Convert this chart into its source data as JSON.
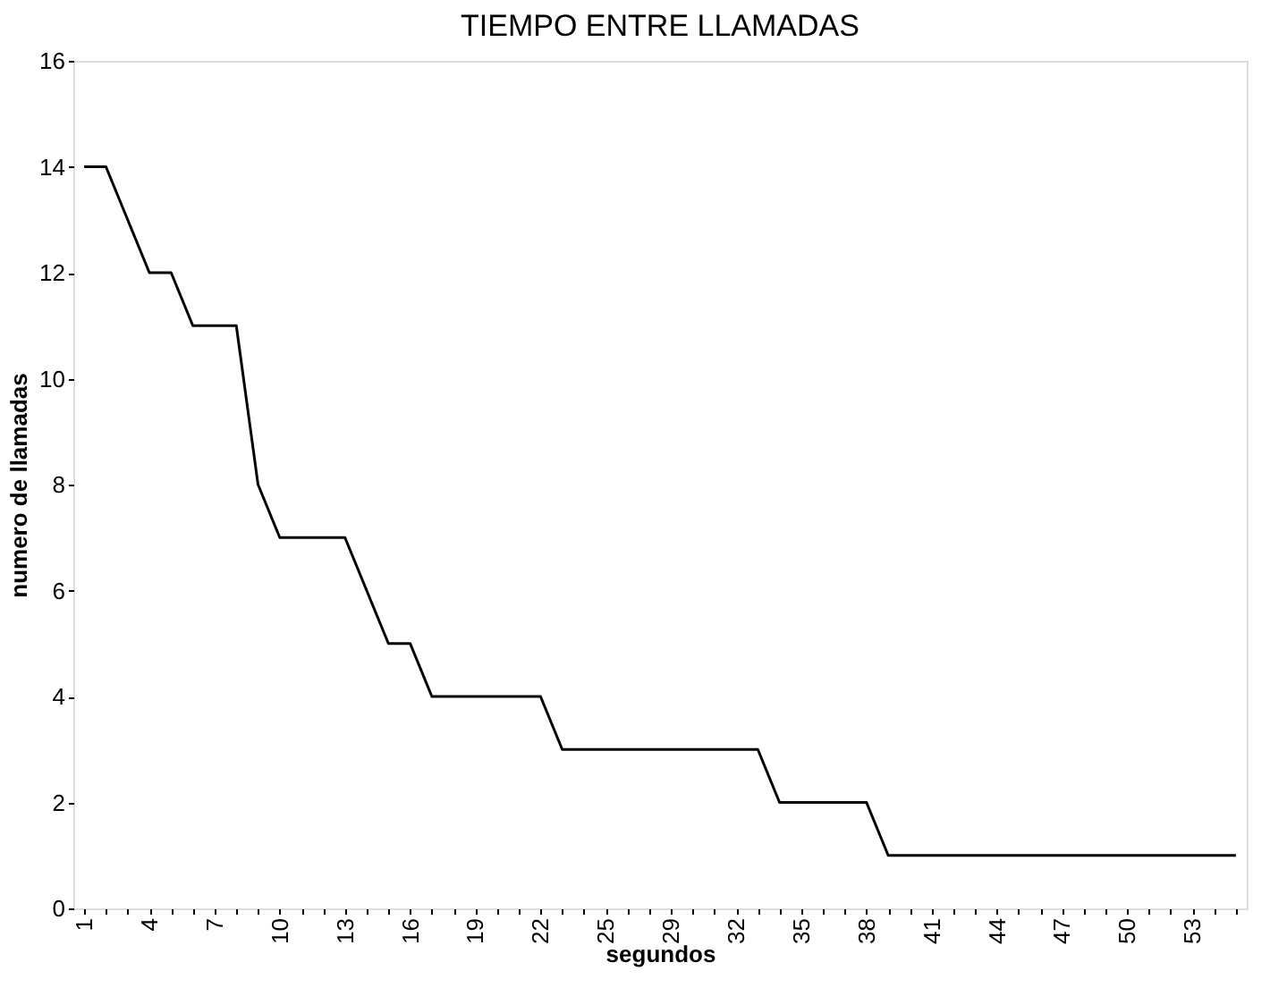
{
  "chart_data": {
    "type": "line",
    "title": "TIEMPO ENTRE LLAMADAS",
    "xlabel": "segundos",
    "ylabel": "numero de llamadas",
    "categories": [
      "1",
      null,
      null,
      "4",
      null,
      null,
      "7",
      null,
      null,
      "10",
      null,
      null,
      "13",
      null,
      null,
      "16",
      null,
      null,
      "19",
      null,
      null,
      "22",
      null,
      null,
      "25",
      null,
      null,
      "29",
      null,
      null,
      "32",
      null,
      null,
      "35",
      null,
      null,
      "38",
      null,
      null,
      "41",
      null,
      null,
      "44",
      null,
      null,
      "47",
      null,
      null,
      "50",
      null,
      null,
      "53",
      null,
      null
    ],
    "series": [
      {
        "color": "#000000",
        "values": [
          14,
          14,
          13,
          12,
          12,
          11,
          11,
          11,
          8,
          7,
          7,
          7,
          7,
          6,
          5,
          5,
          4,
          4,
          4,
          4,
          4,
          4,
          3,
          3,
          3,
          3,
          3,
          3,
          3,
          3,
          3,
          3,
          2,
          2,
          2,
          2,
          2,
          1,
          1,
          1,
          1,
          1,
          1,
          1,
          1,
          1,
          1,
          1,
          1,
          1,
          1,
          1,
          1,
          1
        ]
      }
    ],
    "ylim": [
      0,
      16
    ],
    "yticks": [
      0,
      2,
      4,
      6,
      8,
      10,
      12,
      14,
      16
    ],
    "grid": false,
    "legend": false,
    "marker": "none",
    "line_style": "solid"
  }
}
